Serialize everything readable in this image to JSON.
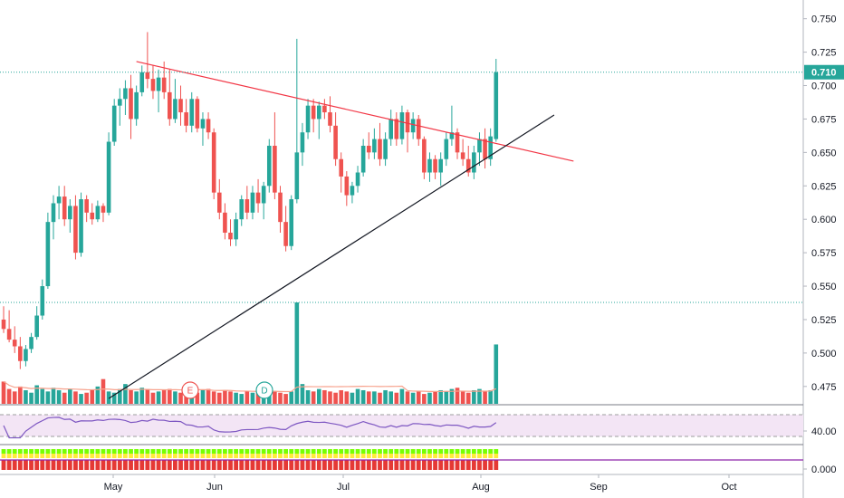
{
  "chart_data": {
    "type": "candlestick",
    "price_axis": {
      "ticks": [
        "0.750",
        "0.725",
        "0.700",
        "0.675",
        "0.650",
        "0.625",
        "0.600",
        "0.575",
        "0.550",
        "0.525",
        "0.500",
        "0.475"
      ],
      "ylim": [
        0.462,
        0.764
      ]
    },
    "time_axis": {
      "ticks": [
        "May",
        "Jun",
        "Jul",
        "Aug",
        "Sep",
        "Oct"
      ]
    },
    "last_price": {
      "label": "0.710",
      "value": 0.71,
      "color": "#26a69a"
    },
    "candles": [
      {
        "o": 0.525,
        "h": 0.535,
        "l": 0.515,
        "c": 0.518
      },
      {
        "o": 0.518,
        "h": 0.532,
        "l": 0.508,
        "c": 0.51
      },
      {
        "o": 0.51,
        "h": 0.52,
        "l": 0.5,
        "c": 0.505
      },
      {
        "o": 0.505,
        "h": 0.512,
        "l": 0.488,
        "c": 0.494
      },
      {
        "o": 0.494,
        "h": 0.506,
        "l": 0.49,
        "c": 0.503
      },
      {
        "o": 0.503,
        "h": 0.515,
        "l": 0.5,
        "c": 0.512
      },
      {
        "o": 0.512,
        "h": 0.535,
        "l": 0.51,
        "c": 0.528
      },
      {
        "o": 0.528,
        "h": 0.555,
        "l": 0.525,
        "c": 0.55
      },
      {
        "o": 0.55,
        "h": 0.605,
        "l": 0.548,
        "c": 0.598
      },
      {
        "o": 0.598,
        "h": 0.618,
        "l": 0.585,
        "c": 0.612
      },
      {
        "o": 0.612,
        "h": 0.625,
        "l": 0.6,
        "c": 0.617
      },
      {
        "o": 0.617,
        "h": 0.625,
        "l": 0.595,
        "c": 0.6
      },
      {
        "o": 0.6,
        "h": 0.615,
        "l": 0.59,
        "c": 0.61
      },
      {
        "o": 0.61,
        "h": 0.618,
        "l": 0.57,
        "c": 0.575
      },
      {
        "o": 0.575,
        "h": 0.62,
        "l": 0.572,
        "c": 0.615
      },
      {
        "o": 0.615,
        "h": 0.618,
        "l": 0.598,
        "c": 0.605
      },
      {
        "o": 0.605,
        "h": 0.612,
        "l": 0.596,
        "c": 0.6
      },
      {
        "o": 0.6,
        "h": 0.614,
        "l": 0.598,
        "c": 0.61
      },
      {
        "o": 0.61,
        "h": 0.612,
        "l": 0.598,
        "c": 0.605
      },
      {
        "o": 0.605,
        "h": 0.665,
        "l": 0.603,
        "c": 0.658
      },
      {
        "o": 0.658,
        "h": 0.69,
        "l": 0.655,
        "c": 0.685
      },
      {
        "o": 0.685,
        "h": 0.698,
        "l": 0.67,
        "c": 0.69
      },
      {
        "o": 0.69,
        "h": 0.704,
        "l": 0.678,
        "c": 0.698
      },
      {
        "o": 0.698,
        "h": 0.708,
        "l": 0.66,
        "c": 0.675
      },
      {
        "o": 0.675,
        "h": 0.7,
        "l": 0.67,
        "c": 0.695
      },
      {
        "o": 0.695,
        "h": 0.715,
        "l": 0.692,
        "c": 0.71
      },
      {
        "o": 0.71,
        "h": 0.74,
        "l": 0.698,
        "c": 0.705
      },
      {
        "o": 0.705,
        "h": 0.715,
        "l": 0.69,
        "c": 0.696
      },
      {
        "o": 0.696,
        "h": 0.712,
        "l": 0.68,
        "c": 0.706
      },
      {
        "o": 0.706,
        "h": 0.718,
        "l": 0.69,
        "c": 0.695
      },
      {
        "o": 0.695,
        "h": 0.712,
        "l": 0.67,
        "c": 0.675
      },
      {
        "o": 0.675,
        "h": 0.705,
        "l": 0.672,
        "c": 0.69
      },
      {
        "o": 0.69,
        "h": 0.7,
        "l": 0.67,
        "c": 0.68
      },
      {
        "o": 0.68,
        "h": 0.69,
        "l": 0.665,
        "c": 0.67
      },
      {
        "o": 0.67,
        "h": 0.695,
        "l": 0.665,
        "c": 0.69
      },
      {
        "o": 0.69,
        "h": 0.692,
        "l": 0.665,
        "c": 0.668
      },
      {
        "o": 0.668,
        "h": 0.68,
        "l": 0.655,
        "c": 0.675
      },
      {
        "o": 0.675,
        "h": 0.68,
        "l": 0.66,
        "c": 0.665
      },
      {
        "o": 0.665,
        "h": 0.668,
        "l": 0.615,
        "c": 0.62
      },
      {
        "o": 0.62,
        "h": 0.63,
        "l": 0.6,
        "c": 0.605
      },
      {
        "o": 0.605,
        "h": 0.612,
        "l": 0.585,
        "c": 0.59
      },
      {
        "o": 0.59,
        "h": 0.6,
        "l": 0.58,
        "c": 0.585
      },
      {
        "o": 0.585,
        "h": 0.605,
        "l": 0.58,
        "c": 0.6
      },
      {
        "o": 0.6,
        "h": 0.618,
        "l": 0.595,
        "c": 0.615
      },
      {
        "o": 0.615,
        "h": 0.625,
        "l": 0.6,
        "c": 0.605
      },
      {
        "o": 0.605,
        "h": 0.625,
        "l": 0.6,
        "c": 0.62
      },
      {
        "o": 0.62,
        "h": 0.63,
        "l": 0.605,
        "c": 0.612
      },
      {
        "o": 0.612,
        "h": 0.628,
        "l": 0.6,
        "c": 0.625
      },
      {
        "o": 0.625,
        "h": 0.66,
        "l": 0.62,
        "c": 0.655
      },
      {
        "o": 0.655,
        "h": 0.68,
        "l": 0.615,
        "c": 0.62
      },
      {
        "o": 0.62,
        "h": 0.625,
        "l": 0.59,
        "c": 0.598
      },
      {
        "o": 0.598,
        "h": 0.61,
        "l": 0.576,
        "c": 0.58
      },
      {
        "o": 0.58,
        "h": 0.618,
        "l": 0.577,
        "c": 0.615
      },
      {
        "o": 0.615,
        "h": 0.735,
        "l": 0.612,
        "c": 0.65
      },
      {
        "o": 0.65,
        "h": 0.672,
        "l": 0.64,
        "c": 0.665
      },
      {
        "o": 0.665,
        "h": 0.69,
        "l": 0.66,
        "c": 0.685
      },
      {
        "o": 0.685,
        "h": 0.69,
        "l": 0.665,
        "c": 0.675
      },
      {
        "o": 0.675,
        "h": 0.688,
        "l": 0.66,
        "c": 0.685
      },
      {
        "o": 0.685,
        "h": 0.69,
        "l": 0.675,
        "c": 0.68
      },
      {
        "o": 0.68,
        "h": 0.692,
        "l": 0.665,
        "c": 0.67
      },
      {
        "o": 0.67,
        "h": 0.68,
        "l": 0.64,
        "c": 0.645
      },
      {
        "o": 0.645,
        "h": 0.65,
        "l": 0.62,
        "c": 0.632
      },
      {
        "o": 0.632,
        "h": 0.636,
        "l": 0.61,
        "c": 0.618
      },
      {
        "o": 0.618,
        "h": 0.628,
        "l": 0.612,
        "c": 0.625
      },
      {
        "o": 0.625,
        "h": 0.64,
        "l": 0.62,
        "c": 0.635
      },
      {
        "o": 0.635,
        "h": 0.66,
        "l": 0.632,
        "c": 0.655
      },
      {
        "o": 0.655,
        "h": 0.665,
        "l": 0.645,
        "c": 0.65
      },
      {
        "o": 0.65,
        "h": 0.668,
        "l": 0.645,
        "c": 0.66
      },
      {
        "o": 0.66,
        "h": 0.672,
        "l": 0.64,
        "c": 0.645
      },
      {
        "o": 0.645,
        "h": 0.665,
        "l": 0.64,
        "c": 0.66
      },
      {
        "o": 0.66,
        "h": 0.682,
        "l": 0.655,
        "c": 0.675
      },
      {
        "o": 0.675,
        "h": 0.68,
        "l": 0.655,
        "c": 0.66
      },
      {
        "o": 0.66,
        "h": 0.685,
        "l": 0.656,
        "c": 0.68
      },
      {
        "o": 0.68,
        "h": 0.682,
        "l": 0.65,
        "c": 0.665
      },
      {
        "o": 0.665,
        "h": 0.68,
        "l": 0.66,
        "c": 0.675
      },
      {
        "o": 0.675,
        "h": 0.678,
        "l": 0.655,
        "c": 0.66
      },
      {
        "o": 0.66,
        "h": 0.662,
        "l": 0.63,
        "c": 0.635
      },
      {
        "o": 0.635,
        "h": 0.65,
        "l": 0.628,
        "c": 0.645
      },
      {
        "o": 0.645,
        "h": 0.648,
        "l": 0.63,
        "c": 0.635
      },
      {
        "o": 0.635,
        "h": 0.65,
        "l": 0.625,
        "c": 0.645
      },
      {
        "o": 0.645,
        "h": 0.665,
        "l": 0.64,
        "c": 0.66
      },
      {
        "o": 0.66,
        "h": 0.685,
        "l": 0.655,
        "c": 0.665
      },
      {
        "o": 0.665,
        "h": 0.668,
        "l": 0.645,
        "c": 0.65
      },
      {
        "o": 0.65,
        "h": 0.66,
        "l": 0.64,
        "c": 0.645
      },
      {
        "o": 0.645,
        "h": 0.655,
        "l": 0.632,
        "c": 0.635
      },
      {
        "o": 0.635,
        "h": 0.655,
        "l": 0.63,
        "c": 0.65
      },
      {
        "o": 0.65,
        "h": 0.665,
        "l": 0.64,
        "c": 0.66
      },
      {
        "o": 0.66,
        "h": 0.668,
        "l": 0.638,
        "c": 0.645
      },
      {
        "o": 0.645,
        "h": 0.668,
        "l": 0.64,
        "c": 0.662
      },
      {
        "o": 0.66,
        "h": 0.72,
        "l": 0.658,
        "c": 0.71
      }
    ],
    "volume": [
      18,
      12,
      10,
      14,
      11,
      9,
      15,
      12,
      10,
      13,
      11,
      9,
      12,
      10,
      8,
      9,
      11,
      14,
      20,
      10,
      9,
      12,
      16,
      11,
      10,
      13,
      12,
      9,
      10,
      11,
      12,
      10,
      9,
      11,
      10,
      9,
      11,
      12,
      10,
      9,
      11,
      10,
      9,
      8,
      10,
      9,
      11,
      10,
      12,
      10,
      9,
      8,
      10,
      82,
      16,
      11,
      10,
      12,
      11,
      10,
      9,
      11,
      10,
      9,
      12,
      11,
      10,
      10,
      9,
      11,
      10,
      9,
      12,
      10,
      9,
      10,
      8,
      9,
      10,
      11,
      10,
      12,
      13,
      10,
      9,
      11,
      12,
      10,
      11,
      48
    ],
    "rsi": {
      "label": "40.00",
      "band": [
        30,
        70
      ]
    },
    "oscillator": {
      "label": "0.000"
    },
    "events": [
      "E",
      "D"
    ],
    "trendlines": [
      {
        "name": "resistance",
        "color": "#f23645"
      },
      {
        "name": "support",
        "color": "#131722"
      }
    ]
  }
}
